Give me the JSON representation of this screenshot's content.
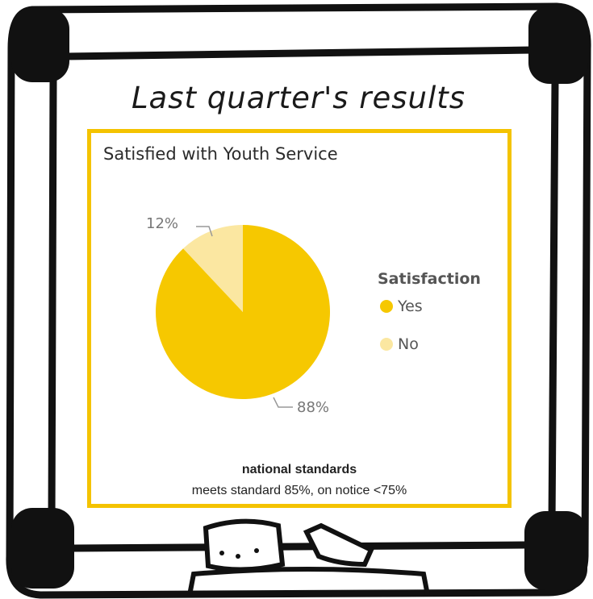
{
  "heading": "Last quarter's results",
  "footnote": {
    "title": "national standards",
    "text": "meets standard 85%, on notice <75%"
  },
  "colors": {
    "accent": "#f4c300",
    "yes": "#f6c800",
    "no": "#fbe7a1"
  },
  "chart_data": {
    "type": "pie",
    "title": "Satisfied with Youth Service",
    "legend_title": "Satisfaction",
    "legend_position": "right",
    "slices": [
      {
        "name": "Yes",
        "value": 88,
        "label": "88%"
      },
      {
        "name": "No",
        "value": 12,
        "label": "12%"
      }
    ]
  }
}
